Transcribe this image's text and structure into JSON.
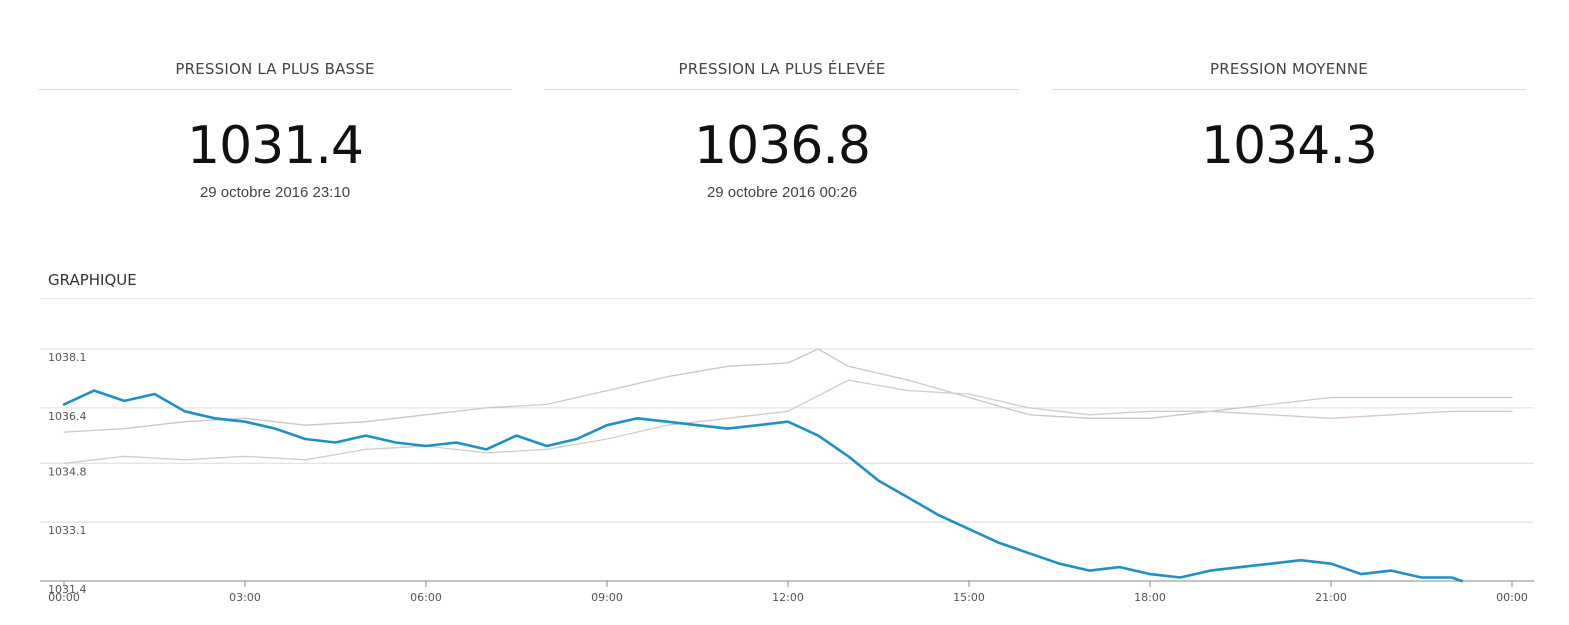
{
  "stats": [
    {
      "title": "PRESSION LA PLUS BASSE",
      "value": "1031.4",
      "date": "29 octobre 2016 23:10"
    },
    {
      "title": "PRESSION LA PLUS ÉLEVÉE",
      "value": "1036.8",
      "date": "29 octobre 2016 00:26"
    },
    {
      "title": "PRESSION MOYENNE",
      "value": "1034.3",
      "date": ""
    }
  ],
  "section": {
    "title": "GRAPHIQUE"
  },
  "chart_data": {
    "type": "line",
    "title": "",
    "xlabel": "",
    "ylabel": "",
    "x_tick_labels": [
      "00:00",
      "03:00",
      "06:00",
      "09:00",
      "12:00",
      "15:00",
      "18:00",
      "21:00",
      "00:00"
    ],
    "y_tick_labels": [
      "1031.4",
      "1033.1",
      "1034.8",
      "1036.4",
      "1038.1"
    ],
    "ylim": [
      1031.4,
      1038.1
    ],
    "xlim": [
      0,
      24
    ],
    "grid": true,
    "colors": {
      "main": "#1f8fc4",
      "compare_1": "#c8c8c8",
      "compare_2": "#d7c9c9"
    },
    "series": [
      {
        "color_key": "main",
        "x": [
          0,
          0.5,
          1,
          1.5,
          2,
          2.5,
          3,
          3.5,
          4,
          4.5,
          5,
          5.5,
          6,
          6.5,
          7,
          7.5,
          8,
          8.5,
          9,
          9.5,
          10,
          10.5,
          11,
          11.5,
          12,
          12.5,
          13,
          13.5,
          14,
          14.5,
          15,
          15.5,
          16,
          16.5,
          17,
          17.5,
          18,
          18.5,
          19,
          19.5,
          20,
          20.5,
          21,
          21.5,
          22,
          22.5,
          23,
          23.17
        ],
        "y": [
          1036.5,
          1036.9,
          1036.6,
          1036.8,
          1036.3,
          1036.1,
          1036.0,
          1035.8,
          1035.5,
          1035.4,
          1035.6,
          1035.4,
          1035.3,
          1035.4,
          1035.2,
          1035.6,
          1035.3,
          1035.5,
          1035.9,
          1036.1,
          1036.0,
          1035.9,
          1035.8,
          1035.9,
          1036.0,
          1035.6,
          1035.0,
          1034.3,
          1033.8,
          1033.3,
          1032.9,
          1032.5,
          1032.2,
          1031.9,
          1031.7,
          1031.8,
          1031.6,
          1031.5,
          1031.7,
          1031.8,
          1031.9,
          1032.0,
          1031.9,
          1031.6,
          1031.7,
          1031.5,
          1031.5,
          1031.4
        ]
      },
      {
        "color_key": "compare_1",
        "x": [
          0,
          1,
          2,
          3,
          4,
          5,
          6,
          7,
          8,
          9,
          10,
          11,
          12,
          12.5,
          13,
          14,
          15,
          16,
          17,
          18,
          19,
          20,
          21,
          22,
          23,
          24
        ],
        "y": [
          1035.7,
          1035.8,
          1036.0,
          1036.1,
          1035.9,
          1036.0,
          1036.2,
          1036.4,
          1036.5,
          1036.9,
          1037.3,
          1037.6,
          1037.7,
          1038.1,
          1037.6,
          1037.2,
          1036.7,
          1036.2,
          1036.1,
          1036.1,
          1036.3,
          1036.5,
          1036.7,
          1036.7,
          1036.7,
          1036.7
        ]
      },
      {
        "color_key": "compare_2",
        "x": [
          0,
          1,
          2,
          3,
          4,
          5,
          6,
          7,
          8,
          9,
          10,
          11,
          12,
          13,
          14,
          15,
          16,
          17,
          18,
          19,
          20,
          21,
          22,
          23,
          24
        ],
        "y": [
          1034.8,
          1035.0,
          1034.9,
          1035.0,
          1034.9,
          1035.2,
          1035.3,
          1035.1,
          1035.2,
          1035.5,
          1035.9,
          1036.1,
          1036.3,
          1037.2,
          1036.9,
          1036.8,
          1036.4,
          1036.2,
          1036.3,
          1036.3,
          1036.2,
          1036.1,
          1036.2,
          1036.3,
          1036.3
        ]
      }
    ]
  }
}
